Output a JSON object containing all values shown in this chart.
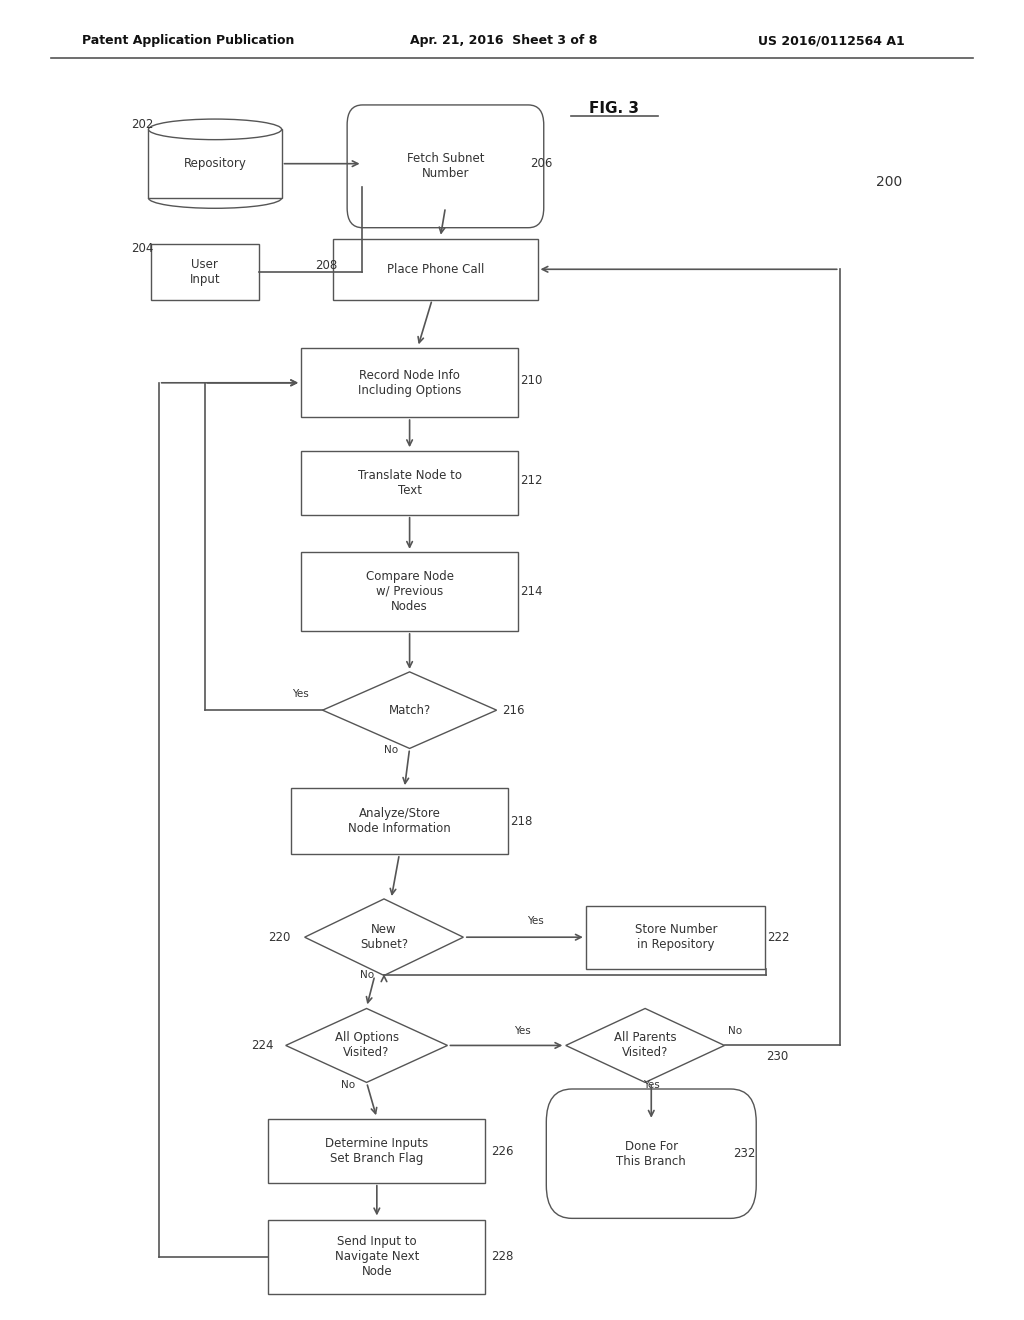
{
  "title_line1": "Patent Application Publication",
  "title_line2": "Apr. 21, 2016  Sheet 3 of 8",
  "title_line3": "US 2016/0112564 A1",
  "fig_label": "FIG. 3",
  "fig_number": "200",
  "background": "#ffffff",
  "line_color": "#555555",
  "box_color": "#ffffff",
  "text_color": "#333333"
}
